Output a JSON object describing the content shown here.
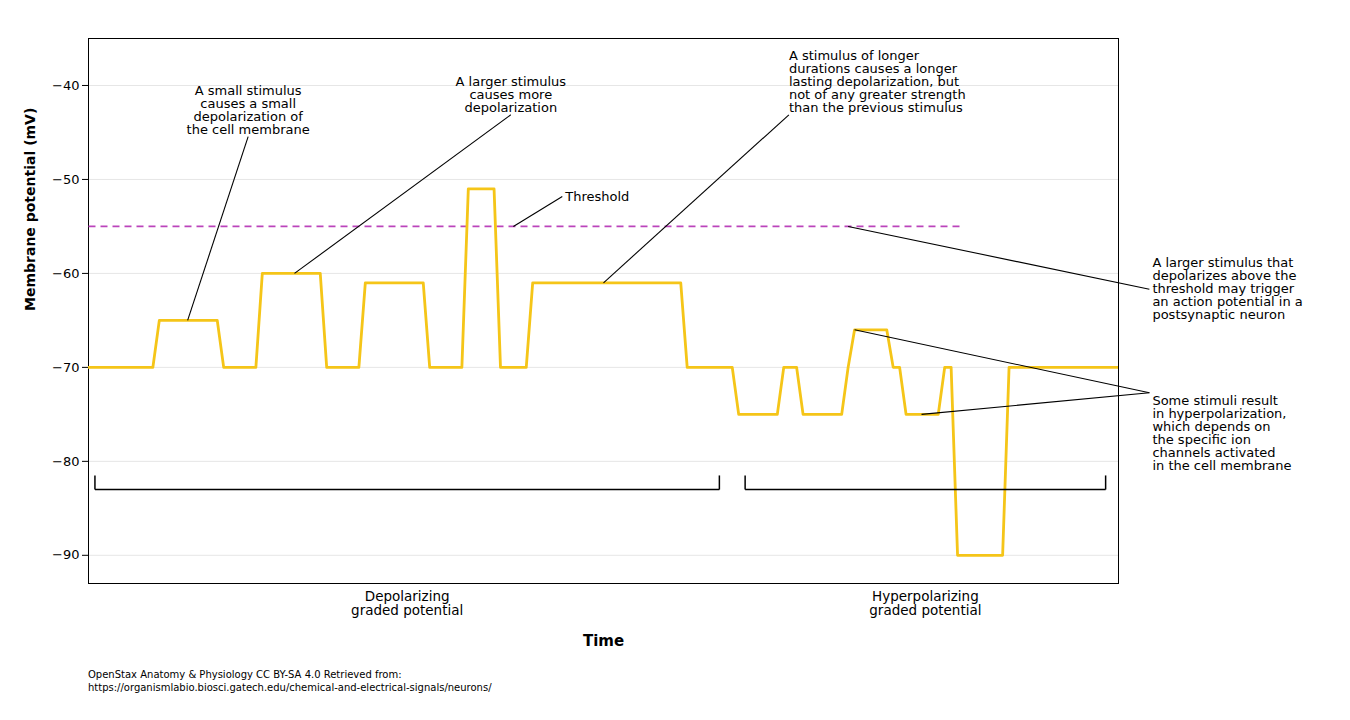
{
  "chart_data": {
    "type": "line",
    "xlabel": "Time",
    "ylabel": "Membrane potential (mV)",
    "x": [
      0,
      0.5,
      0.55,
      1,
      1.05,
      1.3,
      1.35,
      1.8,
      1.85,
      2.1,
      2.15,
      2.6,
      2.65,
      2.9,
      2.95,
      3.15,
      3.2,
      3.4,
      3.45,
      4.6,
      4.65,
      5,
      5.05,
      5.35,
      5.4,
      5.5,
      5.55,
      5.85,
      5.9,
      5.95,
      6.2,
      6.25,
      6.3,
      6.35,
      6.6,
      6.65,
      6.7,
      6.75,
      7.1,
      7.15,
      8
    ],
    "values": [
      -70,
      -70,
      -65,
      -65,
      -70,
      -70,
      -60,
      -60,
      -70,
      -70,
      -61,
      -61,
      -70,
      -70,
      -51,
      -51,
      -70,
      -70,
      -61,
      -61,
      -70,
      -70,
      -75,
      -75,
      -70,
      -70,
      -75,
      -75,
      -70,
      -66,
      -66,
      -70,
      -70,
      -75,
      -75,
      -70,
      -70,
      -90,
      -90,
      -70,
      -70
    ],
    "color": "#F5C518",
    "xlim": [
      0,
      8
    ],
    "xticks": [],
    "ylim": [
      -93,
      -35
    ],
    "yticks": [
      {
        "value": -90,
        "label": "−90"
      },
      {
        "value": -80,
        "label": "−80"
      },
      {
        "value": -70,
        "label": "−70"
      },
      {
        "value": -60,
        "label": "−60"
      },
      {
        "value": -50,
        "label": "−50"
      },
      {
        "value": -40,
        "label": "−40"
      }
    ],
    "tick_labels": "y",
    "grid": true,
    "threshold": {
      "value": -55,
      "x": [
        0,
        6.8
      ],
      "color": "#BB44BB",
      "line_style": "dashed"
    },
    "annotations": [
      {
        "text": "A small stimulus\ncauses a small\ndepolarization of\nthe cell membrane",
        "points": [
          [
            0.77,
            -65
          ]
        ]
      },
      {
        "text": "A larger stimulus\ncauses more\ndepolarization",
        "points": [
          [
            1.6,
            -60
          ]
        ]
      },
      {
        "text": "A stimulus of longer\ndurations causes a longer\nlasting depolarization, but\nnot of any greater strength\nthan the previous stimulus",
        "points": [
          [
            4.0,
            -61
          ]
        ]
      },
      {
        "text": "Threshold",
        "points": [
          [
            3.3,
            -55
          ]
        ]
      },
      {
        "text": "A larger stimulus that\ndepolarizes above the\nthreshold may trigger\nan action potential in a\npostsynaptic neuron",
        "points": [
          [
            5.9,
            -55
          ]
        ]
      },
      {
        "text": "Some stimuli result\nin hyperpolarization,\nwhich depends on\nthe specific ion\nchannels activated\nin the cell membrane",
        "points": [
          [
            5.95,
            -66
          ],
          [
            6.47,
            -75
          ]
        ]
      }
    ],
    "brackets": [
      {
        "text": "Depolarizing\ngraded potential",
        "x": [
          0.05,
          4.9
        ],
        "y": -83
      },
      {
        "text": "Hyperpolarizing\ngraded potential",
        "x": [
          5.1,
          7.9
        ],
        "y": -83
      }
    ],
    "credits": [
      "OpenStax Anatomy & Physiology CC BY-SA 4.0 Retrieved from:",
      "https://organismlabio.biosci.gatech.edu/chemical-and-electrical-signals/neurons/"
    ]
  }
}
